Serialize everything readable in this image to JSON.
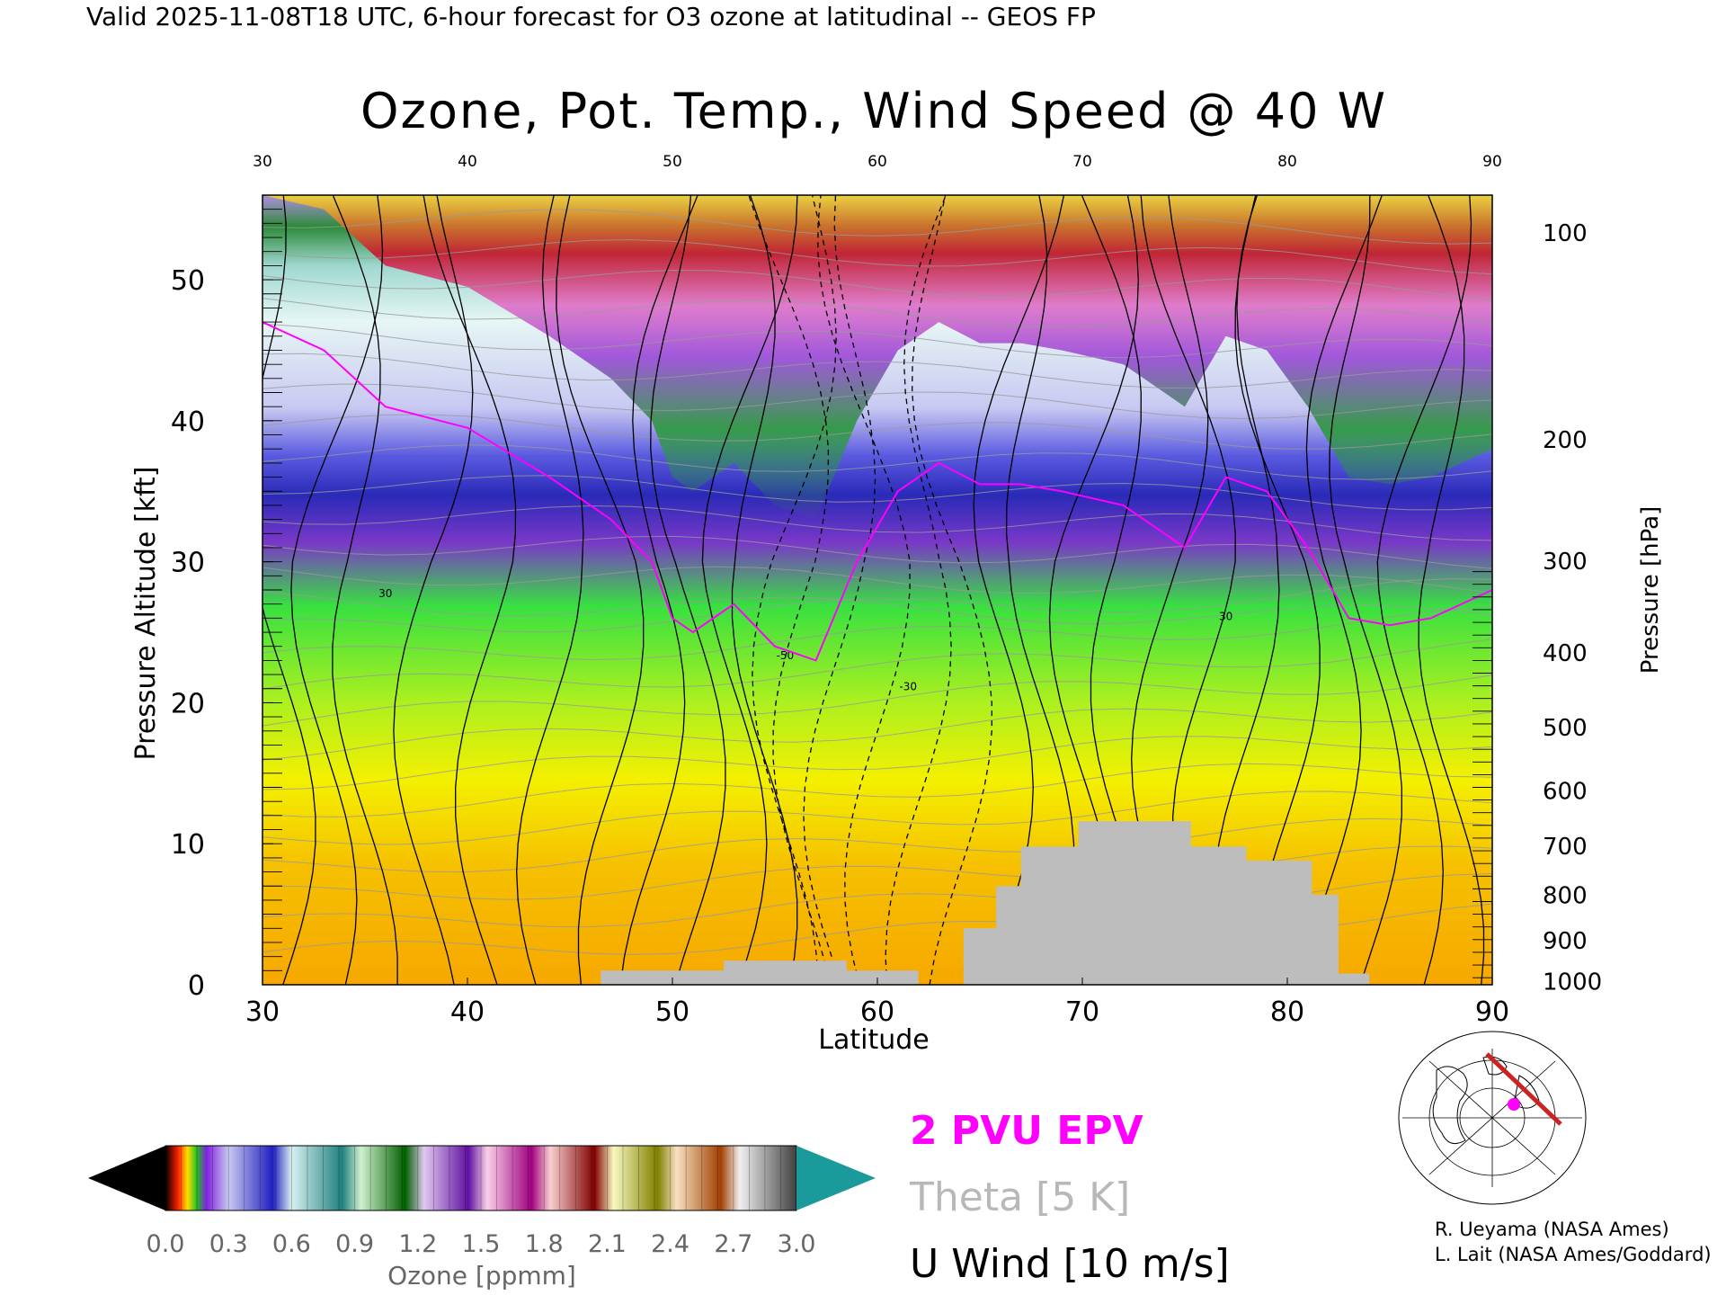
{
  "header": {
    "valid_line": "Valid 2025-11-08T18 UTC, 6-hour forecast for O3 ozone at latitudinal -- GEOS FP"
  },
  "chart_data": {
    "type": "heatmap",
    "title": "Ozone, Pot. Temp., Wind Speed @ 40 W",
    "xlabel": "Latitude",
    "ylabel_left": "Pressure Altitude [kft]",
    "ylabel_right": "Pressure [hPa]",
    "xlim": [
      30,
      90
    ],
    "ylim": [
      0,
      56
    ],
    "x_ticks": [
      30,
      40,
      50,
      60,
      70,
      80,
      90
    ],
    "x_tick_labels": [
      "30",
      "40",
      "50",
      "60",
      "70",
      "80",
      "90"
    ],
    "y_ticks": [
      0,
      10,
      20,
      30,
      40,
      50
    ],
    "y_tick_labels": [
      "0",
      "10",
      "20",
      "30",
      "40",
      "50"
    ],
    "pressure_ticks": [
      {
        "label": "100",
        "kft": 53.4
      },
      {
        "label": "200",
        "kft": 38.7
      },
      {
        "label": "300",
        "kft": 30.1
      },
      {
        "label": "400",
        "kft": 23.6
      },
      {
        "label": "500",
        "kft": 18.3
      },
      {
        "label": "600",
        "kft": 13.8
      },
      {
        "label": "700",
        "kft": 9.9
      },
      {
        "label": "800",
        "kft": 6.4
      },
      {
        "label": "900",
        "kft": 3.2
      },
      {
        "label": "1000",
        "kft": 0.3
      }
    ],
    "tropopause_kft": [
      [
        30,
        47
      ],
      [
        33,
        45
      ],
      [
        36,
        41
      ],
      [
        40,
        39.5
      ],
      [
        44,
        36
      ],
      [
        47,
        33
      ],
      [
        49,
        30
      ],
      [
        50,
        26
      ],
      [
        51,
        25
      ],
      [
        53,
        27
      ],
      [
        55,
        24
      ],
      [
        57,
        23
      ],
      [
        59,
        30
      ],
      [
        61,
        35
      ],
      [
        63,
        37
      ],
      [
        65,
        35.5
      ],
      [
        67,
        35.5
      ],
      [
        69,
        35
      ],
      [
        72,
        34
      ],
      [
        75,
        31
      ],
      [
        77,
        36
      ],
      [
        79,
        35
      ],
      [
        81,
        31
      ],
      [
        83,
        26
      ],
      [
        85,
        25.5
      ],
      [
        87,
        26
      ],
      [
        90,
        28
      ]
    ],
    "terrain_kft": [
      [
        30,
        0
      ],
      [
        46.5,
        0
      ],
      [
        46.5,
        1
      ],
      [
        52.5,
        1
      ],
      [
        52.5,
        1.7
      ],
      [
        58.5,
        1.7
      ],
      [
        58.5,
        1
      ],
      [
        62,
        1
      ],
      [
        62,
        0
      ],
      [
        64.2,
        0
      ],
      [
        64.2,
        4
      ],
      [
        65.8,
        4
      ],
      [
        65.8,
        7
      ],
      [
        67,
        7
      ],
      [
        67,
        9.8
      ],
      [
        69.8,
        9.8
      ],
      [
        69.8,
        11.6
      ],
      [
        75.3,
        11.6
      ],
      [
        75.3,
        9.8
      ],
      [
        78,
        9.8
      ],
      [
        78,
        8.8
      ],
      [
        81.2,
        8.8
      ],
      [
        81.2,
        6.4
      ],
      [
        82.5,
        6.4
      ],
      [
        82.5,
        0.8
      ],
      [
        84,
        0.8
      ],
      [
        84,
        0
      ],
      [
        90,
        0
      ]
    ],
    "jets": [
      {
        "lat": 55.5,
        "top_kft": 42,
        "label": "-50"
      },
      {
        "lat": 61.5,
        "top_kft": 38,
        "label": "-30"
      },
      {
        "lat": 36,
        "top_kft": 50,
        "label": "30"
      },
      {
        "lat": 77,
        "top_kft": 47,
        "label": "30"
      }
    ],
    "colorbar": {
      "label": "Ozone [ppmm]",
      "tick_labels": [
        "0.0",
        "0.3",
        "0.6",
        "0.9",
        "1.2",
        "1.5",
        "1.8",
        "2.1",
        "2.4",
        "2.7",
        "3.0"
      ],
      "range": [
        0,
        3.0
      ]
    },
    "legend": {
      "items": [
        {
          "label": "2 PVU EPV",
          "color": "#ff00ff"
        },
        {
          "label": "Theta [5 K]",
          "color": "#b8b8b8"
        },
        {
          "label": "U Wind [10 m/s]",
          "color": "#000000"
        }
      ]
    }
  },
  "credits": {
    "line1": "R. Ueyama (NASA Ames)",
    "line2": "L. Lait (NASA Ames/Goddard)"
  },
  "inset_map": {
    "icons": [
      "globe-map-icon"
    ],
    "path_color": "#cc2222",
    "marker_color": "#ff00ff"
  }
}
